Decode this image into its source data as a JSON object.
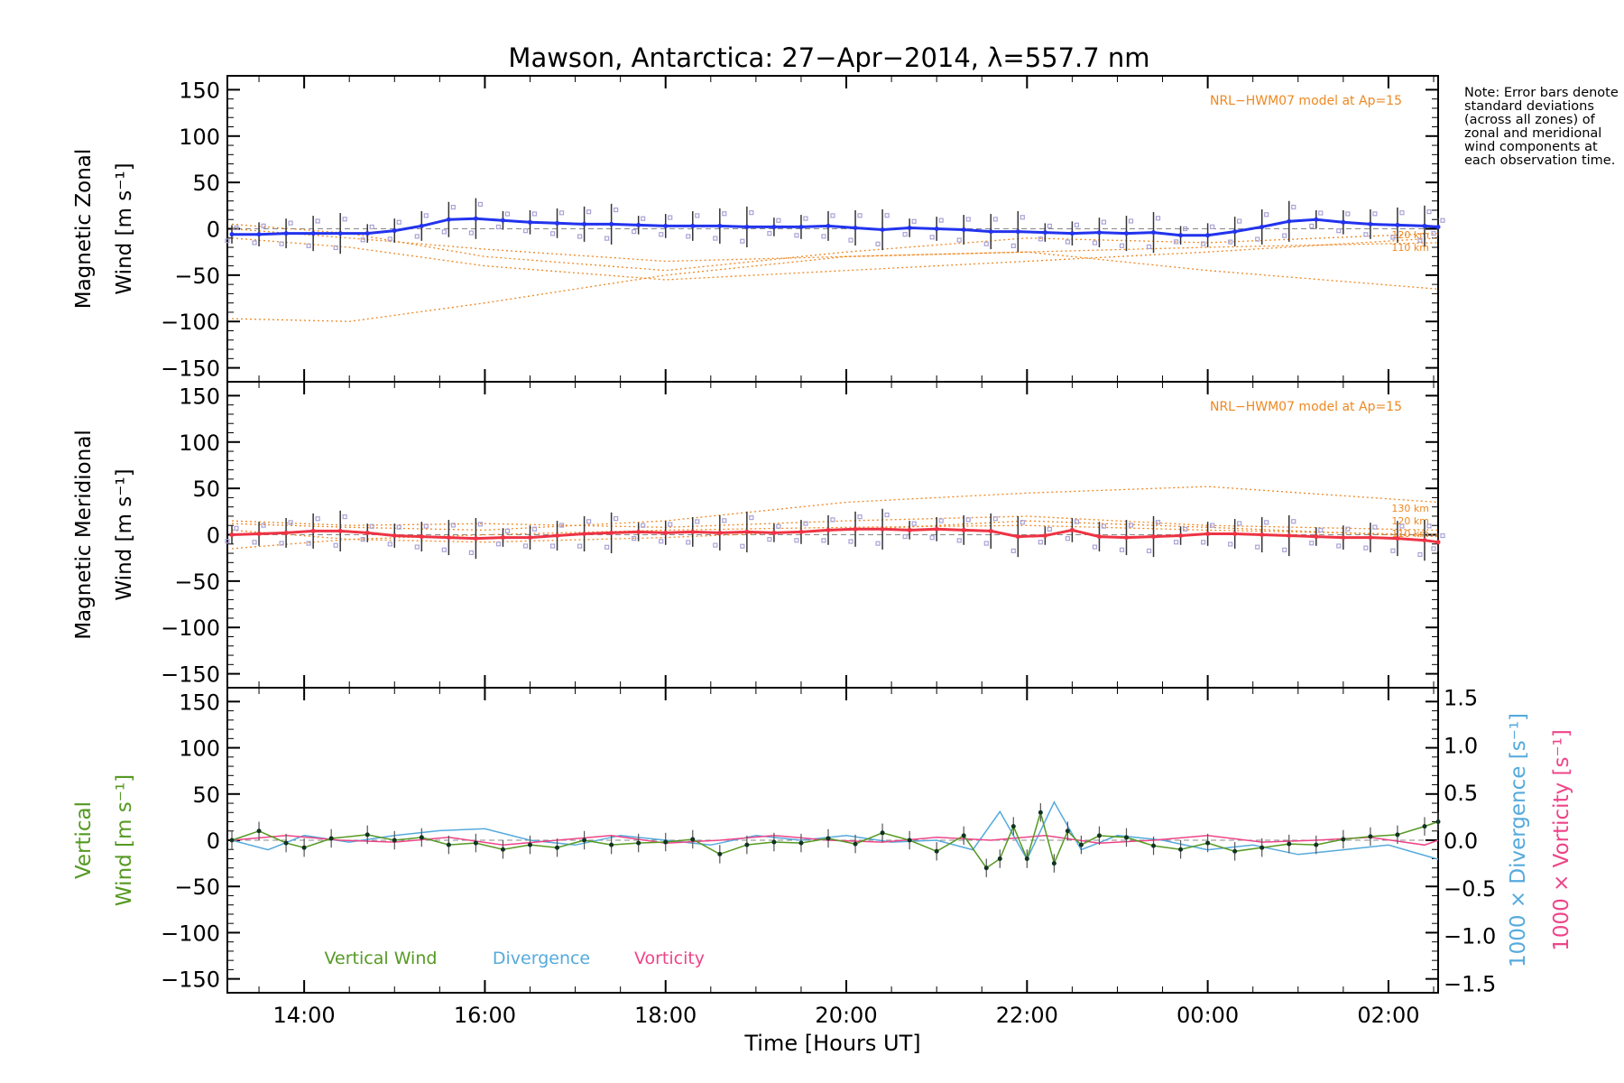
{
  "title": "Mawson, Antarctica: 27−Apr−2014, λ=557.7 nm",
  "note": "Note: Error bars denote standard deviations (across all zones) of zonal and meridional wind components at each observation time.",
  "colors": {
    "zonal": "#2233ee",
    "zonal_light": "#66bbdd",
    "meridional": "#ee3344",
    "model": "#ee8822",
    "zone_points": "#a9a2d6",
    "vertical": "#559922",
    "divergence": "#55aadd",
    "vorticity": "#ee4488"
  },
  "x_ticks": [
    "14:00",
    "16:00",
    "18:00",
    "20:00",
    "22:00",
    "00:00",
    "02:00"
  ],
  "xlabel": "Time [Hours UT]",
  "chart_data": [
    {
      "type": "line",
      "panel": "zonal",
      "ylabel_line1": "Magnetic Zonal",
      "ylabel_line2": "Wind [m s⁻¹]",
      "ylim": [
        -165,
        165
      ],
      "yticks": [
        "150",
        "100",
        "50",
        "0",
        "−50",
        "−100",
        "−150"
      ],
      "x_range_hours": [
        13.15,
        26.55
      ],
      "model_label": "NRL−HWM07 model at Ap=15",
      "model_curve_labels": [
        "120 km",
        "110 km"
      ],
      "series": [
        {
          "name": "Magnetic Zonal Wind",
          "x": [
            13.2,
            13.5,
            13.8,
            14.1,
            14.4,
            14.7,
            15.0,
            15.3,
            15.6,
            15.9,
            16.2,
            16.5,
            16.8,
            17.1,
            17.4,
            17.7,
            18.0,
            18.3,
            18.6,
            18.9,
            19.2,
            19.5,
            19.8,
            20.1,
            20.4,
            20.7,
            21.0,
            21.3,
            21.6,
            21.9,
            22.2,
            22.5,
            22.8,
            23.1,
            23.4,
            23.7,
            24.0,
            24.3,
            24.6,
            24.9,
            25.2,
            25.5,
            25.8,
            26.1,
            26.4,
            26.55
          ],
          "y": [
            -6,
            -6,
            -5,
            -5,
            -5,
            -5,
            -2,
            3,
            10,
            11,
            9,
            7,
            6,
            5,
            5,
            4,
            3,
            3,
            3,
            2,
            2,
            2,
            3,
            1,
            -1,
            1,
            0,
            -1,
            -3,
            -3,
            -4,
            -5,
            -4,
            -5,
            -4,
            -7,
            -7,
            -3,
            2,
            8,
            10,
            7,
            5,
            4,
            3,
            2
          ]
        }
      ],
      "model_curves": [
        {
          "x": [
            13.2,
            14.5,
            16.0,
            18.0,
            20.0,
            22.0,
            24.0,
            26.55
          ],
          "y": [
            -10,
            -20,
            -40,
            -55,
            -45,
            -35,
            -25,
            -10
          ]
        },
        {
          "x": [
            13.2,
            14.5,
            16.0,
            18.0,
            20.0,
            22.0,
            24.0,
            26.55
          ],
          "y": [
            0,
            -10,
            -22,
            -35,
            -30,
            -25,
            -20,
            -15
          ]
        },
        {
          "x": [
            13.2,
            14.5,
            16.0,
            18.0,
            20.0,
            22.0,
            24.0,
            26.55
          ],
          "y": [
            -97,
            -100,
            -80,
            -50,
            -30,
            -25,
            -45,
            -65
          ]
        },
        {
          "x": [
            13.2,
            14.5,
            16.0,
            18.0,
            20.0,
            22.0,
            24.0,
            26.55
          ],
          "y": [
            5,
            -5,
            -30,
            -45,
            -25,
            -10,
            -15,
            -5
          ]
        }
      ]
    },
    {
      "type": "line",
      "panel": "meridional",
      "ylabel_line1": "Magnetic Meridional",
      "ylabel_line2": "Wind [m s⁻¹]",
      "ylim": [
        -165,
        165
      ],
      "yticks": [
        "150",
        "100",
        "50",
        "0",
        "−50",
        "−100",
        "−150"
      ],
      "x_range_hours": [
        13.15,
        26.55
      ],
      "model_label": "NRL−HWM07 model at Ap=15",
      "model_curve_labels": [
        "130 km",
        "120 km",
        "110 km"
      ],
      "series": [
        {
          "name": "Magnetic Meridional Wind",
          "x": [
            13.2,
            13.5,
            13.8,
            14.1,
            14.4,
            14.7,
            15.0,
            15.3,
            15.6,
            15.9,
            16.2,
            16.5,
            16.8,
            17.1,
            17.4,
            17.7,
            18.0,
            18.3,
            18.6,
            18.9,
            19.2,
            19.5,
            19.8,
            20.1,
            20.4,
            20.7,
            21.0,
            21.3,
            21.6,
            21.9,
            22.2,
            22.5,
            22.8,
            23.1,
            23.4,
            23.7,
            24.0,
            24.3,
            24.6,
            24.9,
            25.2,
            25.5,
            25.8,
            26.1,
            26.4,
            26.55
          ],
          "y": [
            0,
            1,
            2,
            4,
            4,
            2,
            -1,
            -2,
            -3,
            -4,
            -3,
            -3,
            -1,
            1,
            2,
            3,
            2,
            3,
            2,
            3,
            2,
            3,
            5,
            6,
            6,
            5,
            6,
            5,
            4,
            -2,
            -1,
            5,
            -2,
            -3,
            -2,
            -1,
            1,
            1,
            0,
            -1,
            -2,
            -3,
            -3,
            -4,
            -6,
            -8
          ]
        }
      ],
      "model_curves": [
        {
          "x": [
            13.2,
            14.5,
            16.0,
            18.0,
            20.0,
            22.0,
            24.0,
            26.55
          ],
          "y": [
            12,
            8,
            5,
            15,
            35,
            45,
            52,
            35
          ]
        },
        {
          "x": [
            13.2,
            14.5,
            16.0,
            18.0,
            20.0,
            22.0,
            24.0,
            26.55
          ],
          "y": [
            15,
            10,
            12,
            8,
            15,
            20,
            10,
            5
          ]
        },
        {
          "x": [
            13.2,
            14.5,
            16.0,
            18.0,
            20.0,
            22.0,
            24.0,
            26.55
          ],
          "y": [
            -15,
            -5,
            0,
            5,
            8,
            10,
            5,
            0
          ]
        },
        {
          "x": [
            13.2,
            14.5,
            16.0,
            18.0,
            20.0,
            22.0,
            24.0,
            26.55
          ],
          "y": [
            5,
            -5,
            -8,
            -3,
            5,
            15,
            8,
            -2
          ]
        }
      ]
    },
    {
      "type": "line",
      "panel": "vertical",
      "ylabel_line1": "Vertical",
      "ylabel_line2": "Wind [m s⁻¹]",
      "ylim": [
        -165,
        165
      ],
      "yticks": [
        "150",
        "100",
        "50",
        "0",
        "−50",
        "−100",
        "−150"
      ],
      "y2lim": [
        -1.6,
        1.6
      ],
      "y2ticks": [
        "1.5",
        "1.0",
        "0.5",
        "0.0",
        "−0.5",
        "−1.0",
        "−1.5"
      ],
      "y2label_div": "1000 × Divergence [s⁻¹]",
      "y2label_vor": "1000 × Vorticity [s⁻¹]",
      "x_range_hours": [
        13.15,
        26.55
      ],
      "series": [
        {
          "name": "Vertical Wind",
          "x": [
            13.2,
            13.5,
            13.8,
            14.0,
            14.3,
            14.7,
            15.0,
            15.3,
            15.6,
            15.9,
            16.2,
            16.5,
            16.8,
            17.1,
            17.4,
            17.7,
            18.0,
            18.3,
            18.6,
            18.9,
            19.2,
            19.5,
            19.8,
            20.1,
            20.4,
            20.7,
            21.0,
            21.3,
            21.55,
            21.7,
            21.85,
            22.0,
            22.15,
            22.3,
            22.45,
            22.6,
            22.8,
            23.1,
            23.4,
            23.7,
            24.0,
            24.3,
            24.6,
            24.9,
            25.2,
            25.5,
            25.8,
            26.1,
            26.4,
            26.55
          ],
          "y": [
            0,
            10,
            -3,
            -8,
            2,
            6,
            0,
            3,
            -5,
            -3,
            -10,
            -5,
            -8,
            0,
            -5,
            -3,
            -2,
            1,
            -15,
            -5,
            -2,
            -3,
            2,
            -4,
            8,
            0,
            -12,
            5,
            -30,
            -20,
            15,
            -20,
            30,
            -25,
            10,
            -5,
            5,
            3,
            -6,
            -10,
            -3,
            -12,
            -8,
            -4,
            -5,
            1,
            4,
            6,
            15,
            20
          ]
        },
        {
          "name": "Divergence",
          "x": [
            13.2,
            13.6,
            14.0,
            14.5,
            15.0,
            15.5,
            16.0,
            16.5,
            17.0,
            17.5,
            18.0,
            18.5,
            19.0,
            19.5,
            20.0,
            20.5,
            21.0,
            21.4,
            21.7,
            22.0,
            22.3,
            22.6,
            23.0,
            23.5,
            24.0,
            24.5,
            25.0,
            25.5,
            26.0,
            26.55
          ],
          "y": [
            0.0,
            -0.1,
            0.05,
            -0.02,
            0.05,
            0.1,
            0.12,
            0.0,
            -0.05,
            0.05,
            0.0,
            -0.05,
            0.05,
            0.0,
            0.05,
            -0.02,
            0.0,
            -0.1,
            0.3,
            -0.2,
            0.4,
            -0.1,
            0.05,
            0.0,
            -0.1,
            -0.05,
            -0.15,
            -0.1,
            -0.05,
            -0.2
          ]
        },
        {
          "name": "Vorticity",
          "x": [
            13.2,
            13.8,
            14.4,
            15.0,
            15.6,
            16.2,
            16.8,
            17.4,
            18.0,
            18.6,
            19.2,
            19.8,
            20.4,
            21.0,
            21.6,
            22.2,
            22.8,
            23.4,
            24.0,
            24.6,
            25.2,
            25.8,
            26.4,
            26.55
          ],
          "y": [
            0.0,
            0.05,
            0.0,
            -0.02,
            0.03,
            -0.05,
            0.0,
            0.05,
            -0.03,
            0.0,
            0.05,
            0.0,
            -0.02,
            0.03,
            0.0,
            0.05,
            -0.03,
            0.0,
            0.05,
            -0.02,
            0.0,
            0.03,
            -0.05,
            0.0
          ]
        }
      ],
      "legend": [
        "Vertical Wind",
        "Divergence",
        "Vorticity"
      ]
    }
  ]
}
